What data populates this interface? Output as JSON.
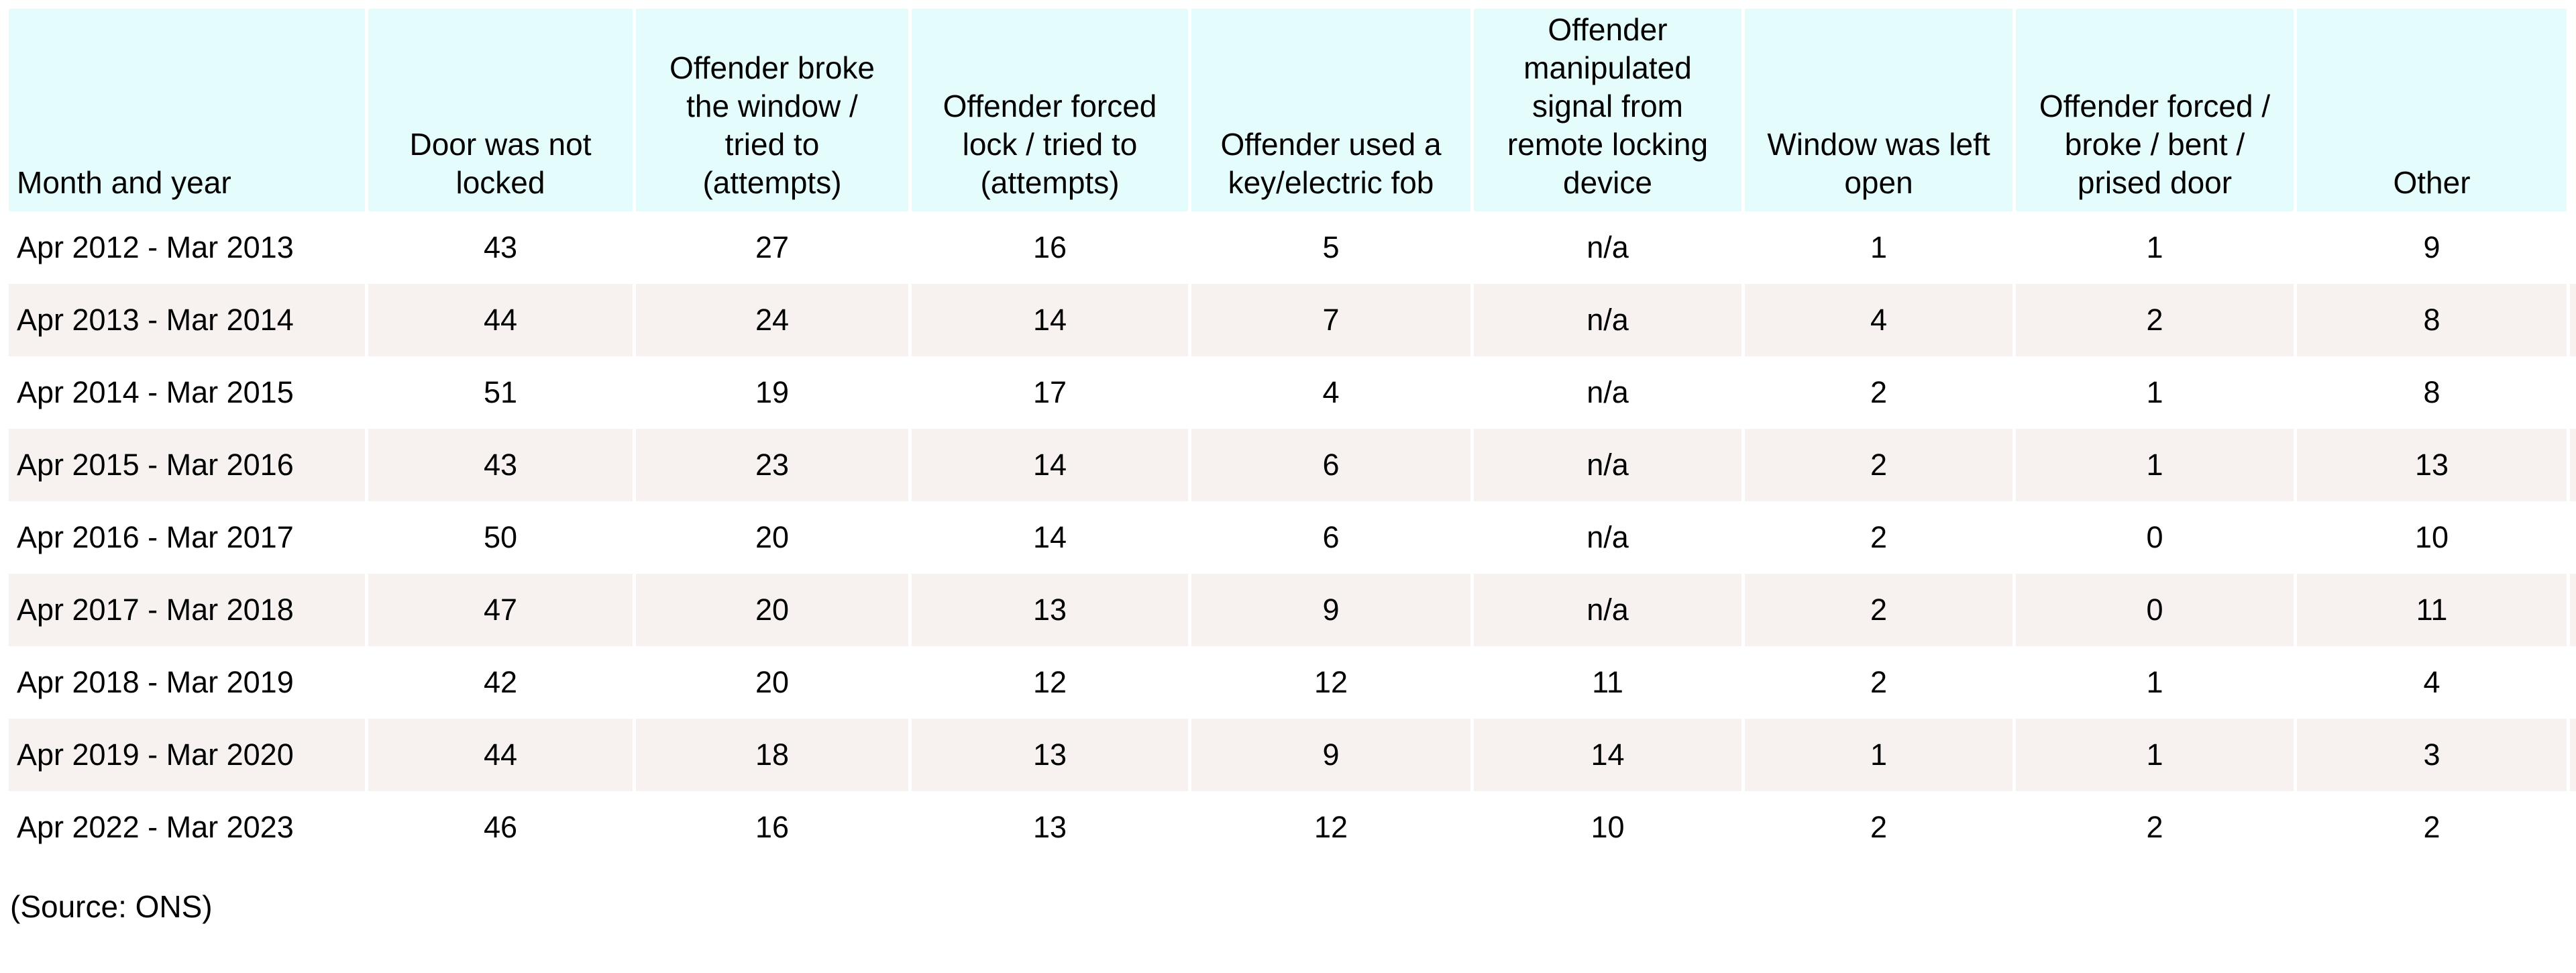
{
  "chart_data": {
    "type": "table",
    "columns": [
      "Month and year",
      "Door was not\nlocked",
      "Offender broke\nthe window /\ntried to\n(attempts)",
      "Offender forced\nlock / tried to\n(attempts)",
      "Offender used a\nkey/electric fob",
      "Offender\nmanipulated\nsignal from\nremote locking\ndevice",
      "Window was left\nopen",
      "Offender forced /\nbroke / bent /\nprised door",
      "Other"
    ],
    "rows": [
      {
        "label": "Apr 2012 - Mar 2013",
        "values": [
          "43",
          "27",
          "16",
          "5",
          "n/a",
          "1",
          "1",
          "9"
        ]
      },
      {
        "label": "Apr 2013 - Mar 2014",
        "values": [
          "44",
          "24",
          "14",
          "7",
          "n/a",
          "4",
          "2",
          "8"
        ]
      },
      {
        "label": "Apr 2014 - Mar 2015",
        "values": [
          "51",
          "19",
          "17",
          "4",
          "n/a",
          "2",
          "1",
          "8"
        ]
      },
      {
        "label": "Apr 2015 - Mar 2016",
        "values": [
          "43",
          "23",
          "14",
          "6",
          "n/a",
          "2",
          "1",
          "13"
        ]
      },
      {
        "label": "Apr 2016 - Mar 2017",
        "values": [
          "50",
          "20",
          "14",
          "6",
          "n/a",
          "2",
          "0",
          "10"
        ]
      },
      {
        "label": "Apr 2017 - Mar 2018",
        "values": [
          "47",
          "20",
          "13",
          "9",
          "n/a",
          "2",
          "0",
          "11"
        ]
      },
      {
        "label": "Apr 2018 - Mar 2019",
        "values": [
          "42",
          "20",
          "12",
          "12",
          "11",
          "2",
          "1",
          "4"
        ]
      },
      {
        "label": "Apr 2019 - Mar 2020",
        "values": [
          "44",
          "18",
          "13",
          "9",
          "14",
          "1",
          "1",
          "3"
        ]
      },
      {
        "label": "Apr 2022 - Mar 2023",
        "values": [
          "46",
          "16",
          "13",
          "12",
          "10",
          "2",
          "2",
          "2"
        ]
      }
    ]
  },
  "source_note": "(Source: ONS)",
  "colors": {
    "header_bg": "#e4fcfc",
    "row_alt_bg": "#f7f2f0",
    "text": "#000000"
  }
}
